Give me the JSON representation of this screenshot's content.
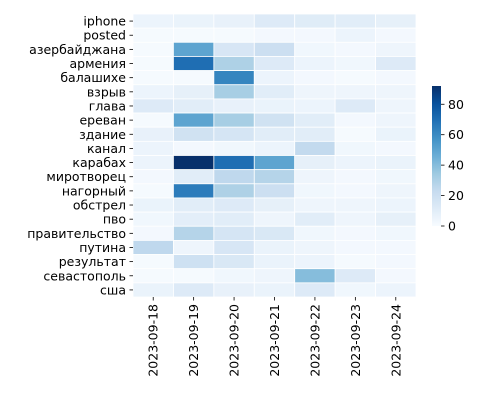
{
  "chart_data": {
    "type": "heatmap",
    "title": "",
    "xlabel": "",
    "ylabel": "",
    "x_categories": [
      "2023-09-18",
      "2023-09-19",
      "2023-09-20",
      "2023-09-21",
      "2023-09-22",
      "2023-09-23",
      "2023-09-24"
    ],
    "y_categories": [
      "iphone",
      "posted",
      "азербайджана",
      "армения",
      "балашихе",
      "взрыв",
      "глава",
      "ереван",
      "здание",
      "канал",
      "карабах",
      "миротворец",
      "нагорный",
      "обстрел",
      "пво",
      "правительство",
      "путина",
      "результат",
      "севастополь",
      "сша"
    ],
    "values": [
      [
        5,
        6,
        7,
        12,
        11,
        10,
        8
      ],
      [
        1,
        1,
        1,
        2,
        2,
        5,
        2
      ],
      [
        1,
        50,
        15,
        20,
        3,
        2,
        4
      ],
      [
        1,
        70,
        30,
        12,
        5,
        3,
        12
      ],
      [
        1,
        1,
        62,
        5,
        2,
        1,
        2
      ],
      [
        5,
        8,
        32,
        10,
        4,
        4,
        4
      ],
      [
        12,
        10,
        7,
        6,
        5,
        12,
        4
      ],
      [
        1,
        50,
        32,
        18,
        10,
        2,
        4
      ],
      [
        7,
        18,
        16,
        10,
        10,
        1,
        6
      ],
      [
        5,
        2,
        3,
        5,
        24,
        3,
        2
      ],
      [
        5,
        92,
        70,
        50,
        8,
        5,
        6
      ],
      [
        2,
        10,
        25,
        28,
        4,
        2,
        3
      ],
      [
        1,
        65,
        30,
        20,
        3,
        2,
        4
      ],
      [
        6,
        10,
        12,
        8,
        4,
        4,
        5
      ],
      [
        3,
        9,
        10,
        4,
        10,
        4,
        8
      ],
      [
        2,
        28,
        16,
        14,
        3,
        2,
        3
      ],
      [
        25,
        4,
        15,
        6,
        4,
        2,
        2
      ],
      [
        1,
        19,
        14,
        6,
        5,
        1,
        2
      ],
      [
        1,
        1,
        3,
        4,
        40,
        12,
        2
      ],
      [
        6,
        12,
        7,
        6,
        12,
        3,
        5
      ]
    ],
    "colorbar": {
      "min": 0,
      "max": 92,
      "ticks": [
        0,
        20,
        40,
        60,
        80
      ]
    },
    "colormap": "Blues",
    "grid": true,
    "cell_border_color": "#ffffff"
  }
}
